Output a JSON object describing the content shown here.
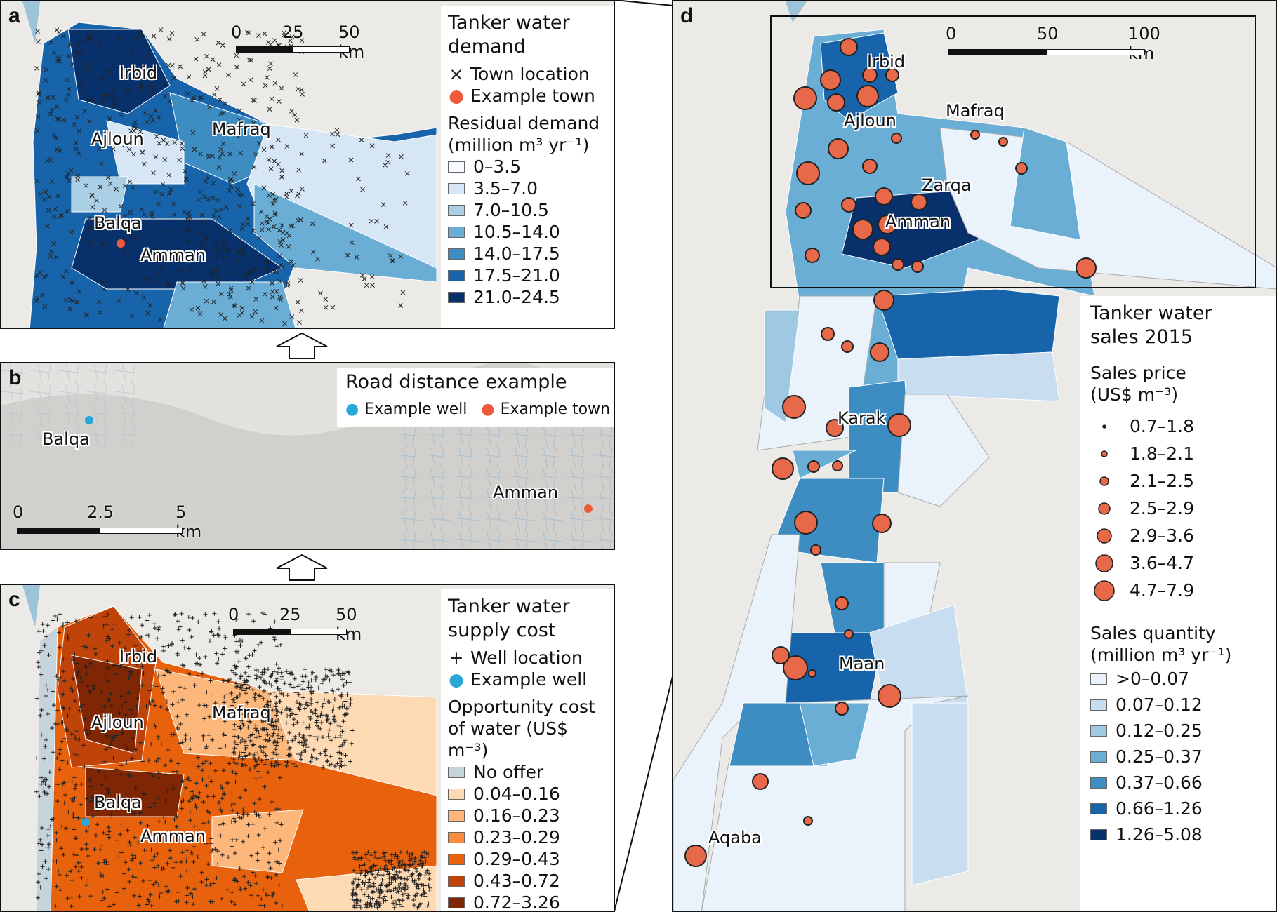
{
  "panel_a": {
    "label": "a",
    "legend_title": "Tanker water demand",
    "symbols": [
      {
        "glyph": "×",
        "label": "Town location"
      },
      {
        "glyph": "●",
        "label": "Example town",
        "color": "#ef5a3c"
      }
    ],
    "scale_title": "Residual demand",
    "scale_unit": "(million m³ yr⁻¹)",
    "classes": [
      {
        "label": "0–3.5",
        "color": "#f7fbff"
      },
      {
        "label": "3.5–7.0",
        "color": "#d6e6f4"
      },
      {
        "label": "7.0–10.5",
        "color": "#abcfe5"
      },
      {
        "label": "10.5–14.0",
        "color": "#6aaed6"
      },
      {
        "label": "14.0–17.5",
        "color": "#3d8dc3"
      },
      {
        "label": "17.5–21.0",
        "color": "#1764ab"
      },
      {
        "label": "21.0–24.5",
        "color": "#08306b"
      }
    ],
    "scalebar": [
      "0",
      "25",
      "50 km"
    ],
    "towns": [
      "Irbid",
      "Ajloun",
      "Mafraq",
      "Balqa",
      "Amman"
    ]
  },
  "panel_b": {
    "label": "b",
    "legend_title": "Road distance example",
    "symbols": [
      {
        "label": "Example well",
        "color": "#29a8d8"
      },
      {
        "label": "Example town",
        "color": "#ef5a3c"
      }
    ],
    "scalebar": [
      "0",
      "2.5",
      "5 km"
    ],
    "towns": [
      "Balqa",
      "Amman"
    ]
  },
  "panel_c": {
    "label": "c",
    "legend_title": "Tanker water supply cost",
    "symbols": [
      {
        "glyph": "+",
        "label": "Well location"
      },
      {
        "glyph": "●",
        "label": "Example well",
        "color": "#29a8d8"
      }
    ],
    "scale_title": "Opportunity cost",
    "scale_unit": "of water (US$ m⁻³)",
    "classes": [
      {
        "label": "No offer",
        "color": "#c5d3da"
      },
      {
        "label": "0.04–0.16",
        "color": "#fdd9b4"
      },
      {
        "label": "0.16–0.23",
        "color": "#fdb77a"
      },
      {
        "label": "0.23–0.29",
        "color": "#fb8d3d"
      },
      {
        "label": "0.29–0.43",
        "color": "#e8620e"
      },
      {
        "label": "0.43–0.72",
        "color": "#c0430a"
      },
      {
        "label": "0.72–3.26",
        "color": "#7f2704"
      }
    ],
    "scalebar": [
      "0",
      "25",
      "50 km"
    ],
    "towns": [
      "Irbid",
      "Ajloun",
      "Mafraq",
      "Balqa",
      "Amman"
    ]
  },
  "panel_d": {
    "label": "d",
    "legend_title": "Tanker water sales 2015",
    "price_title": "Sales price",
    "price_unit": "(US$ m⁻³)",
    "price_classes": [
      "0.7–1.8",
      "1.8–2.1",
      "2.1–2.5",
      "2.5–2.9",
      "2.9–3.6",
      "3.6–4.7",
      "4.7–7.9"
    ],
    "quantity_title": "Sales quantity",
    "quantity_unit": "(million m³ yr⁻¹)",
    "quantity_classes": [
      {
        "label": ">0–0.07",
        "color": "#eaf3fc"
      },
      {
        "label": "0.07–0.12",
        "color": "#c9ddf0"
      },
      {
        "label": "0.12–0.25",
        "color": "#9fc8e3"
      },
      {
        "label": "0.25–0.37",
        "color": "#6aaed6"
      },
      {
        "label": "0.37–0.66",
        "color": "#3d8dc3"
      },
      {
        "label": "0.66–1.26",
        "color": "#1764ab"
      },
      {
        "label": "1.26–5.08",
        "color": "#08306b"
      }
    ],
    "scalebar": [
      "0",
      "50",
      "100 km"
    ],
    "towns": [
      "Irbid",
      "Mafraq",
      "Ajloun",
      "Zarqa",
      "Amman",
      "Karak",
      "Maan",
      "Aqaba"
    ],
    "circle_color": "#e8694a"
  }
}
